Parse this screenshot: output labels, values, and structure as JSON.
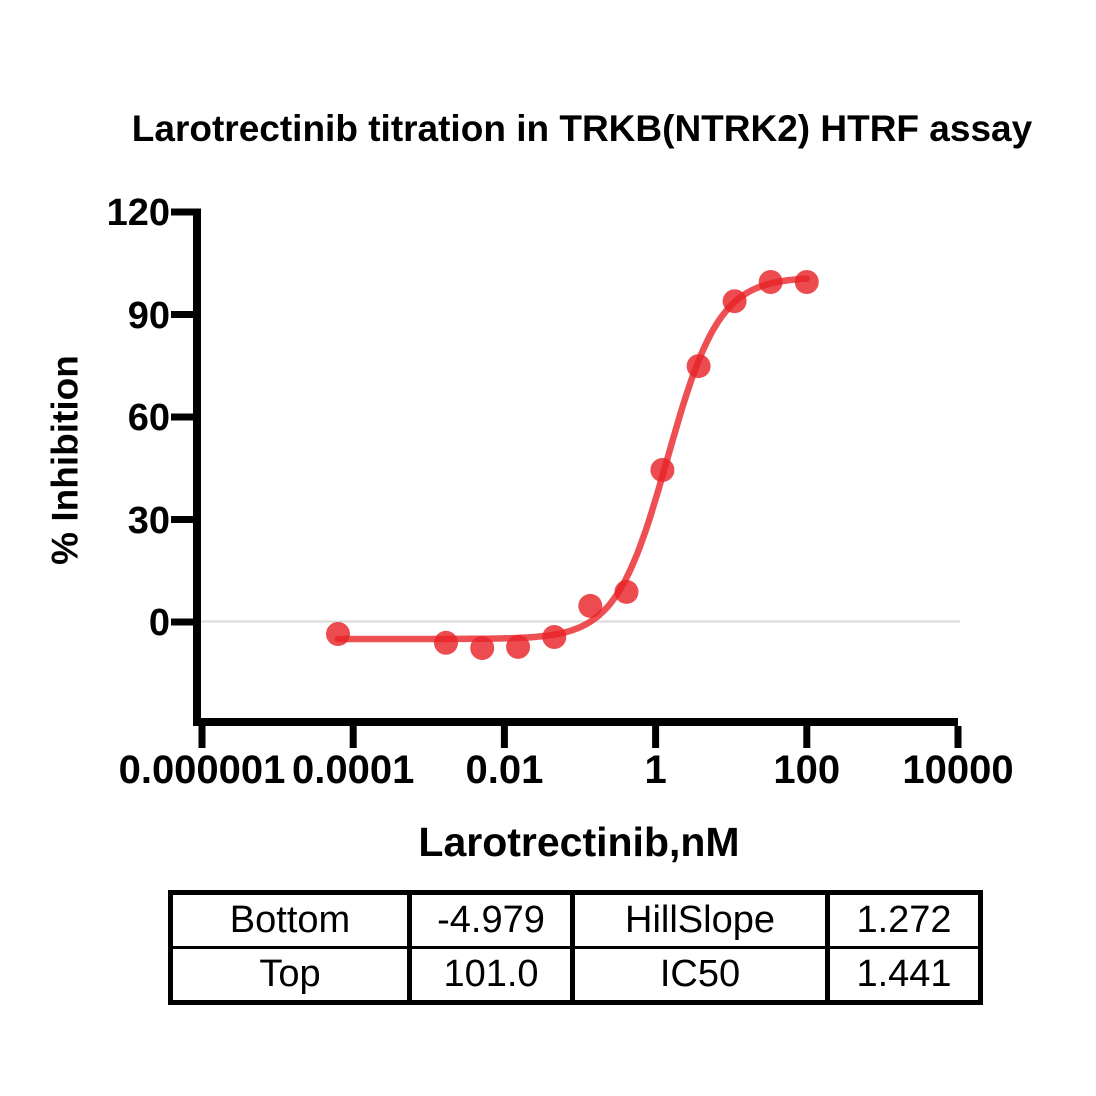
{
  "colors": {
    "curve": "#E82328",
    "marker": "#E82328",
    "axis": "#000000",
    "grid_zero_line": "#DADADA",
    "text": "#000000"
  },
  "chart_data": {
    "type": "scatter",
    "title": "Larotrectinib titration in TRKB(NTRK2) HTRF assay",
    "xlabel": "Larotrectinib,nM",
    "ylabel": "% Inhibition",
    "x_scale": "log10",
    "xlim_log10": [
      -6,
      4
    ],
    "ylim": [
      -30.5,
      120
    ],
    "grid": {
      "y_zero_line": true
    },
    "x_ticks": {
      "values": [
        1e-06,
        0.0001,
        0.01,
        1,
        100,
        10000
      ],
      "labels": [
        "0.000001",
        "0.0001",
        "0.01",
        "1",
        "100",
        "10000"
      ]
    },
    "y_ticks": {
      "values": [
        0,
        30,
        60,
        90,
        120
      ],
      "labels": [
        "0",
        "30",
        "60",
        "90",
        "120"
      ]
    },
    "series": [
      {
        "name": "Larotrectinib",
        "x_nM": [
          6.3e-05,
          0.00169,
          0.00508,
          0.0152,
          0.0457,
          0.137,
          0.412,
          1.23,
          3.7,
          11.1,
          33.3,
          100
        ],
        "y_percent_inhibition": [
          -3.5,
          -6.1,
          -7.6,
          -7.3,
          -4.4,
          4.7,
          8.8,
          44.5,
          74.9,
          93.9,
          99.5,
          99.5
        ]
      }
    ],
    "fit": {
      "model": "four_parameter_logistic",
      "Bottom": -4.979,
      "Top": 101.0,
      "HillSlope": 1.272,
      "IC50": 1.441,
      "curve_x_range_nM": [
        6.3e-05,
        100
      ]
    }
  },
  "table": {
    "rows": [
      [
        {
          "label": "Bottom",
          "value": "-4.979"
        },
        {
          "label": "HillSlope",
          "value": "1.272"
        }
      ],
      [
        {
          "label": "Top",
          "value": "101.0"
        },
        {
          "label": "IC50",
          "value": "1.441"
        }
      ]
    ]
  }
}
